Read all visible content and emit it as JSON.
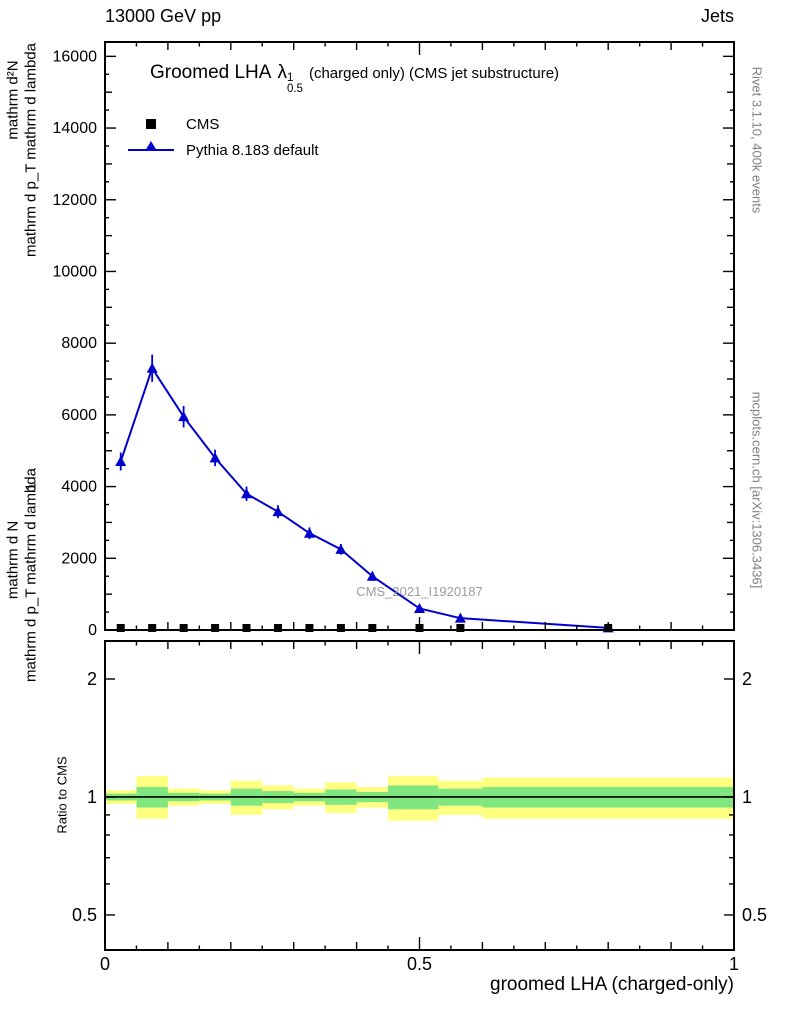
{
  "header": {
    "left": "13000 GeV pp",
    "right": "Jets"
  },
  "title": {
    "prefix": "Groomed LHA",
    "symbol": "λ",
    "sup": "1",
    "sub": "0.5",
    "suffix": "(charged only) (CMS jet substructure)"
  },
  "legend": [
    {
      "label": "CMS",
      "marker": "square",
      "color": "#000000"
    },
    {
      "label": "Pythia 8.183 default",
      "marker": "triangle-line",
      "color": "#0000cd"
    }
  ],
  "watermark": "CMS_2021_I1920187",
  "ylabel_fragments": [
    "mathrm d²N",
    "mathrm d p_T mathrm d lambda",
    "1",
    "mathrm d N",
    "mathrm d p_T mathrm d lambda"
  ],
  "ratio_ylabel": "Ratio to CMS",
  "xlabel": "groomed LHA (charged-only)",
  "side_notes": {
    "rivet": "Rivet 3.1.10,  400k events",
    "mcplots": "mcplots.cern.ch [arXiv:1306.3436]"
  },
  "chart_data": [
    {
      "type": "line",
      "panel": "main",
      "title": "Groomed LHA λ^1_0.5 (charged only) (CMS jet substructure)",
      "xlabel": "groomed LHA (charged-only)",
      "ylabel": "1/N d²N / d p_T d lambda (garbled LaTeX rendered as text)",
      "xlim": [
        0,
        1
      ],
      "ylim": [
        0,
        16400
      ],
      "grid": false,
      "legend_position": "top-left",
      "xticks": {
        "major": [
          0,
          0.5,
          1
        ],
        "minor_step": 0.1
      },
      "yticks": {
        "major_step": 2000,
        "minor_step": 500,
        "labels": [
          0,
          2000,
          4000,
          6000,
          8000,
          10000,
          12000,
          14000,
          16000
        ]
      },
      "series": [
        {
          "name": "CMS",
          "type": "points",
          "marker": "square",
          "color": "#000000",
          "x": [
            0.025,
            0.075,
            0.125,
            0.175,
            0.225,
            0.275,
            0.325,
            0.375,
            0.425,
            0.5,
            0.565,
            0.8
          ],
          "y": [
            0,
            0,
            0,
            0,
            0,
            0,
            0,
            0,
            0,
            0,
            0,
            0
          ]
        },
        {
          "name": "Pythia 8.183 default",
          "type": "line-points",
          "marker": "triangle",
          "color": "#0000cd",
          "x": [
            0.025,
            0.075,
            0.125,
            0.175,
            0.225,
            0.275,
            0.325,
            0.375,
            0.425,
            0.5,
            0.565,
            0.8
          ],
          "y": [
            4700,
            7300,
            5950,
            4800,
            3800,
            3300,
            2700,
            2250,
            1500,
            600,
            330,
            60
          ],
          "yerr": [
            250,
            380,
            300,
            230,
            200,
            180,
            160,
            150,
            130,
            90,
            120,
            30
          ]
        }
      ]
    },
    {
      "type": "ratio",
      "panel": "ratio",
      "ylabel": "Ratio to CMS",
      "yscale": "log",
      "xlim": [
        0,
        1
      ],
      "ylim": [
        0.407,
        2.5
      ],
      "reference_line": 1,
      "band_colors": {
        "outer": "#ffff80",
        "inner": "#80e680"
      },
      "yticks": {
        "labels": [
          0.5,
          1,
          2
        ],
        "minor": [
          0.6,
          0.7,
          0.8,
          0.9
        ]
      },
      "xticks": {
        "major": [
          0,
          0.5,
          1
        ],
        "minor_step": 0.1
      },
      "bins": [
        {
          "x0": 0.0,
          "x1": 0.05,
          "outer": [
            0.96,
            1.04
          ],
          "inner": [
            0.98,
            1.02
          ]
        },
        {
          "x0": 0.05,
          "x1": 0.1,
          "outer": [
            0.88,
            1.13
          ],
          "inner": [
            0.94,
            1.06
          ]
        },
        {
          "x0": 0.1,
          "x1": 0.15,
          "outer": [
            0.95,
            1.05
          ],
          "inner": [
            0.975,
            1.025
          ]
        },
        {
          "x0": 0.15,
          "x1": 0.2,
          "outer": [
            0.96,
            1.04
          ],
          "inner": [
            0.98,
            1.02
          ]
        },
        {
          "x0": 0.2,
          "x1": 0.25,
          "outer": [
            0.9,
            1.1
          ],
          "inner": [
            0.95,
            1.05
          ]
        },
        {
          "x0": 0.25,
          "x1": 0.3,
          "outer": [
            0.93,
            1.07
          ],
          "inner": [
            0.965,
            1.035
          ]
        },
        {
          "x0": 0.3,
          "x1": 0.35,
          "outer": [
            0.95,
            1.05
          ],
          "inner": [
            0.975,
            1.025
          ]
        },
        {
          "x0": 0.35,
          "x1": 0.4,
          "outer": [
            0.91,
            1.09
          ],
          "inner": [
            0.955,
            1.045
          ]
        },
        {
          "x0": 0.4,
          "x1": 0.45,
          "outer": [
            0.94,
            1.06
          ],
          "inner": [
            0.97,
            1.03
          ]
        },
        {
          "x0": 0.45,
          "x1": 0.53,
          "outer": [
            0.87,
            1.13
          ],
          "inner": [
            0.93,
            1.07
          ]
        },
        {
          "x0": 0.53,
          "x1": 0.6,
          "outer": [
            0.9,
            1.1
          ],
          "inner": [
            0.95,
            1.05
          ]
        },
        {
          "x0": 0.6,
          "x1": 1.0,
          "outer": [
            0.88,
            1.12
          ],
          "inner": [
            0.94,
            1.06
          ]
        }
      ]
    }
  ]
}
